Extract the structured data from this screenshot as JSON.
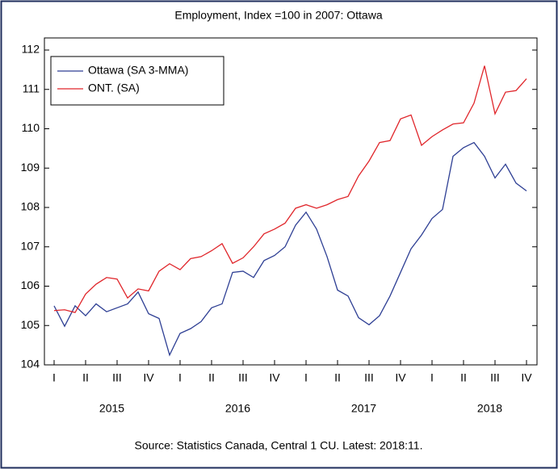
{
  "chart_data": {
    "type": "line",
    "title": "Employment, Index =100 in 2007: Ottawa",
    "source": "Source: Statistics Canada, Central 1 CU. Latest: 2018:11.",
    "categories": [
      "I",
      null,
      null,
      "II",
      null,
      null,
      "III",
      null,
      null,
      "IV",
      null,
      null,
      "I",
      null,
      null,
      "II",
      null,
      null,
      "III",
      null,
      null,
      "IV",
      null,
      null,
      "I",
      null,
      null,
      "II",
      null,
      null,
      "III",
      null,
      null,
      "IV",
      null,
      null,
      "I",
      null,
      null,
      "II",
      null,
      null,
      "III",
      null,
      null,
      "IV"
    ],
    "years": [
      "2015",
      "2016",
      "2017",
      "2018"
    ],
    "series": [
      {
        "name": "Ottawa (SA 3-MMA)",
        "color": "#2e3f94",
        "values": [
          105.5,
          104.98,
          105.5,
          105.25,
          105.55,
          105.35,
          105.45,
          105.55,
          105.85,
          105.3,
          105.18,
          104.25,
          104.8,
          104.92,
          105.1,
          105.45,
          105.55,
          106.35,
          106.38,
          106.22,
          106.65,
          106.78,
          107.0,
          107.55,
          107.88,
          107.45,
          106.75,
          105.9,
          105.75,
          105.2,
          105.02,
          105.25,
          105.75,
          106.35,
          106.95,
          107.3,
          107.72,
          107.95,
          109.3,
          109.52,
          109.65,
          109.3,
          108.75,
          109.1,
          108.62,
          108.42
        ]
      },
      {
        "name": "ONT. (SA)",
        "color": "#e0262b",
        "values": [
          105.38,
          105.4,
          105.33,
          105.8,
          106.05,
          106.22,
          106.18,
          105.7,
          105.93,
          105.88,
          106.38,
          106.57,
          106.42,
          106.7,
          106.75,
          106.9,
          107.08,
          106.58,
          106.72,
          107.0,
          107.33,
          107.45,
          107.6,
          107.98,
          108.07,
          107.98,
          108.07,
          108.2,
          108.28,
          108.8,
          109.18,
          109.65,
          109.7,
          110.25,
          110.35,
          109.58,
          109.8,
          109.97,
          110.12,
          110.15,
          110.65,
          111.6,
          110.38,
          110.93,
          110.97,
          111.27
        ]
      }
    ],
    "ylim": [
      104,
      112
    ],
    "yticks": [
      104,
      105,
      106,
      107,
      108,
      109,
      110,
      111,
      112
    ],
    "legend": "upper left"
  }
}
